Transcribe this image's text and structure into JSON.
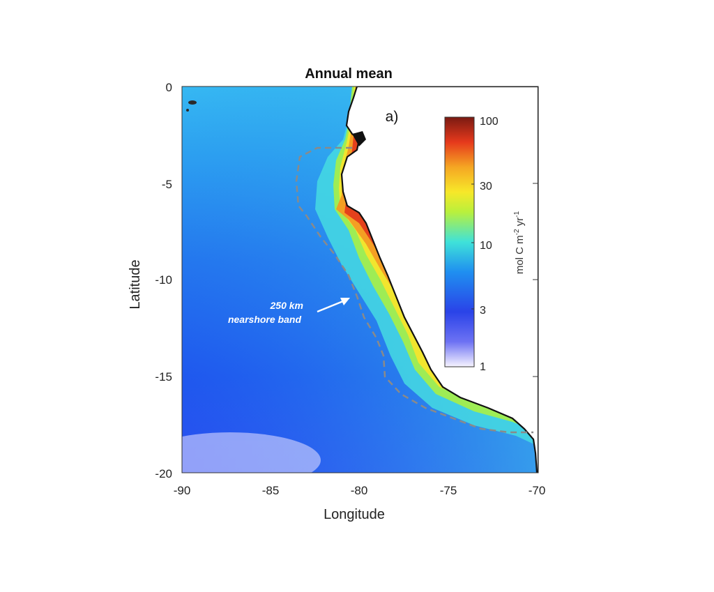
{
  "title": "Annual mean",
  "panel_label": "a)",
  "xlabel": "Longitude",
  "ylabel": "Latitude",
  "x_ticks": [
    "-90",
    "-85",
    "-80",
    "-75",
    "-70"
  ],
  "y_ticks": [
    "0",
    "-5",
    "-10",
    "-15",
    "-20"
  ],
  "colorbar": {
    "label": "mol C m",
    "label_sup1": "-2",
    "label_mid": " yr",
    "label_sup2": "-1",
    "ticks": [
      "100",
      "30",
      "10",
      "3",
      "1"
    ],
    "scale": "log",
    "range": [
      1,
      100
    ],
    "colors": [
      "#f7f4ff",
      "#2a43e8",
      "#19a7ee",
      "#3fe2d9",
      "#b9f03c",
      "#f7e829",
      "#f5a623",
      "#e6391c",
      "#7a1a12"
    ]
  },
  "annotation": {
    "line1": "250 km",
    "line2": "nearshore band"
  },
  "map_data": {
    "lon_range": [
      -90,
      -70
    ],
    "lat_range": [
      -20,
      0
    ],
    "land_color": "#ffffff",
    "ocean_low_color": "#2f5ef0",
    "nearshore_high_color": "#e23a1b",
    "band_line_color": "#8a8a8a"
  }
}
